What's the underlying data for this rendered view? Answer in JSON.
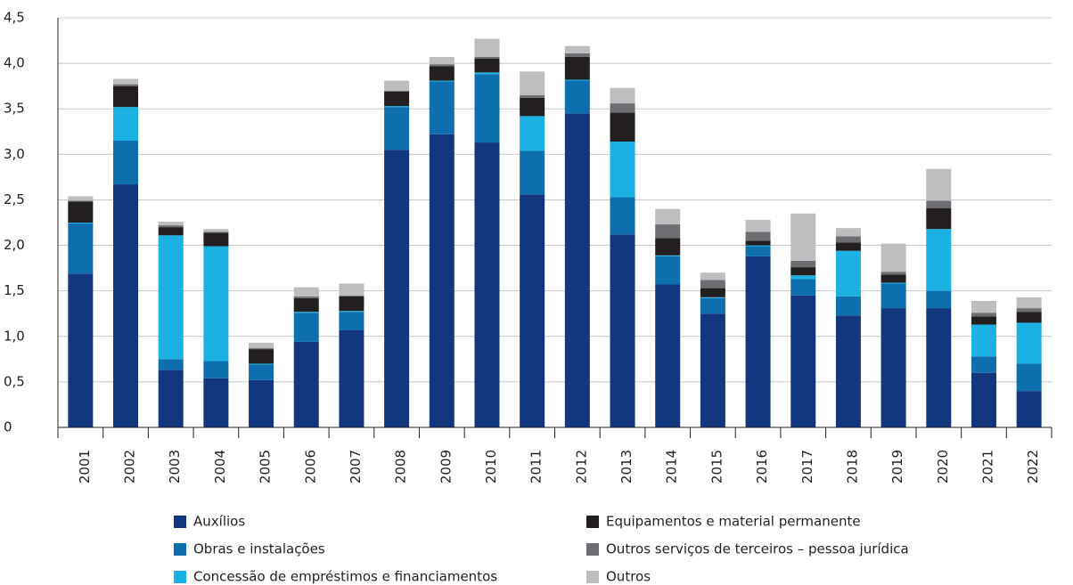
{
  "chart_data": {
    "type": "stacked_bar",
    "categories": [
      "2001",
      "2002",
      "2003",
      "2004",
      "2005",
      "2006",
      "2007",
      "2008",
      "2009",
      "2010",
      "2011",
      "2012",
      "2013",
      "2014",
      "2015",
      "2016",
      "2017",
      "2018",
      "2019",
      "2020",
      "2021",
      "2022"
    ],
    "series": [
      {
        "name": "Auxílios",
        "color": "#12377e",
        "values": [
          1.69,
          2.67,
          0.63,
          0.54,
          0.52,
          0.94,
          1.07,
          3.05,
          3.22,
          3.13,
          2.56,
          3.45,
          2.12,
          1.57,
          1.25,
          1.88,
          1.45,
          1.23,
          1.31,
          1.31,
          0.6,
          0.4
        ]
      },
      {
        "name": "Obras e instalações",
        "color": "#0d6fad",
        "values": [
          0.55,
          0.48,
          0.12,
          0.19,
          0.17,
          0.32,
          0.2,
          0.47,
          0.58,
          0.75,
          0.48,
          0.36,
          0.41,
          0.31,
          0.17,
          0.11,
          0.18,
          0.21,
          0.27,
          0.19,
          0.18,
          0.3
        ]
      },
      {
        "name": "Concessão de empréstimos e financiamentos",
        "color": "#1bb1e2",
        "values": [
          0.01,
          0.37,
          1.36,
          1.26,
          0.01,
          0.01,
          0.01,
          0.01,
          0.01,
          0.02,
          0.38,
          0.01,
          0.61,
          0.01,
          0.01,
          0.01,
          0.04,
          0.5,
          0.01,
          0.68,
          0.35,
          0.45
        ]
      },
      {
        "name": "Equipamentos e material permanente",
        "color": "#231f20",
        "values": [
          0.23,
          0.23,
          0.09,
          0.15,
          0.16,
          0.15,
          0.16,
          0.16,
          0.16,
          0.15,
          0.2,
          0.25,
          0.32,
          0.19,
          0.1,
          0.05,
          0.09,
          0.09,
          0.09,
          0.23,
          0.09,
          0.12
        ]
      },
      {
        "name": "Outros serviços de terceiros – pessoa jurídica",
        "color": "#6d6e71",
        "values": [
          0.01,
          0.02,
          0.02,
          0.01,
          0.01,
          0.02,
          0.01,
          0.01,
          0.02,
          0.02,
          0.03,
          0.04,
          0.1,
          0.15,
          0.09,
          0.1,
          0.07,
          0.07,
          0.03,
          0.08,
          0.04,
          0.04
        ]
      },
      {
        "name": "Outros",
        "color": "#bcbec0",
        "values": [
          0.05,
          0.06,
          0.04,
          0.03,
          0.06,
          0.1,
          0.13,
          0.11,
          0.08,
          0.2,
          0.26,
          0.08,
          0.17,
          0.17,
          0.08,
          0.13,
          0.52,
          0.09,
          0.31,
          0.35,
          0.13,
          0.12
        ]
      }
    ],
    "ylim": [
      0,
      4.5
    ],
    "yticks": [
      0,
      {
        "value": 0.5,
        "label": "0,5"
      },
      {
        "value": 1,
        "label": "1,0"
      },
      {
        "value": 1.5,
        "label": "1,5"
      },
      {
        "value": 2,
        "label": "2,0"
      },
      {
        "value": 2.5,
        "label": "2,5"
      },
      {
        "value": 3,
        "label": "3,0"
      },
      {
        "value": 3.5,
        "label": "3,5"
      },
      {
        "value": 4,
        "label": "4,0"
      },
      {
        "value": 4.5,
        "label": "4,5"
      }
    ],
    "grid": true
  }
}
